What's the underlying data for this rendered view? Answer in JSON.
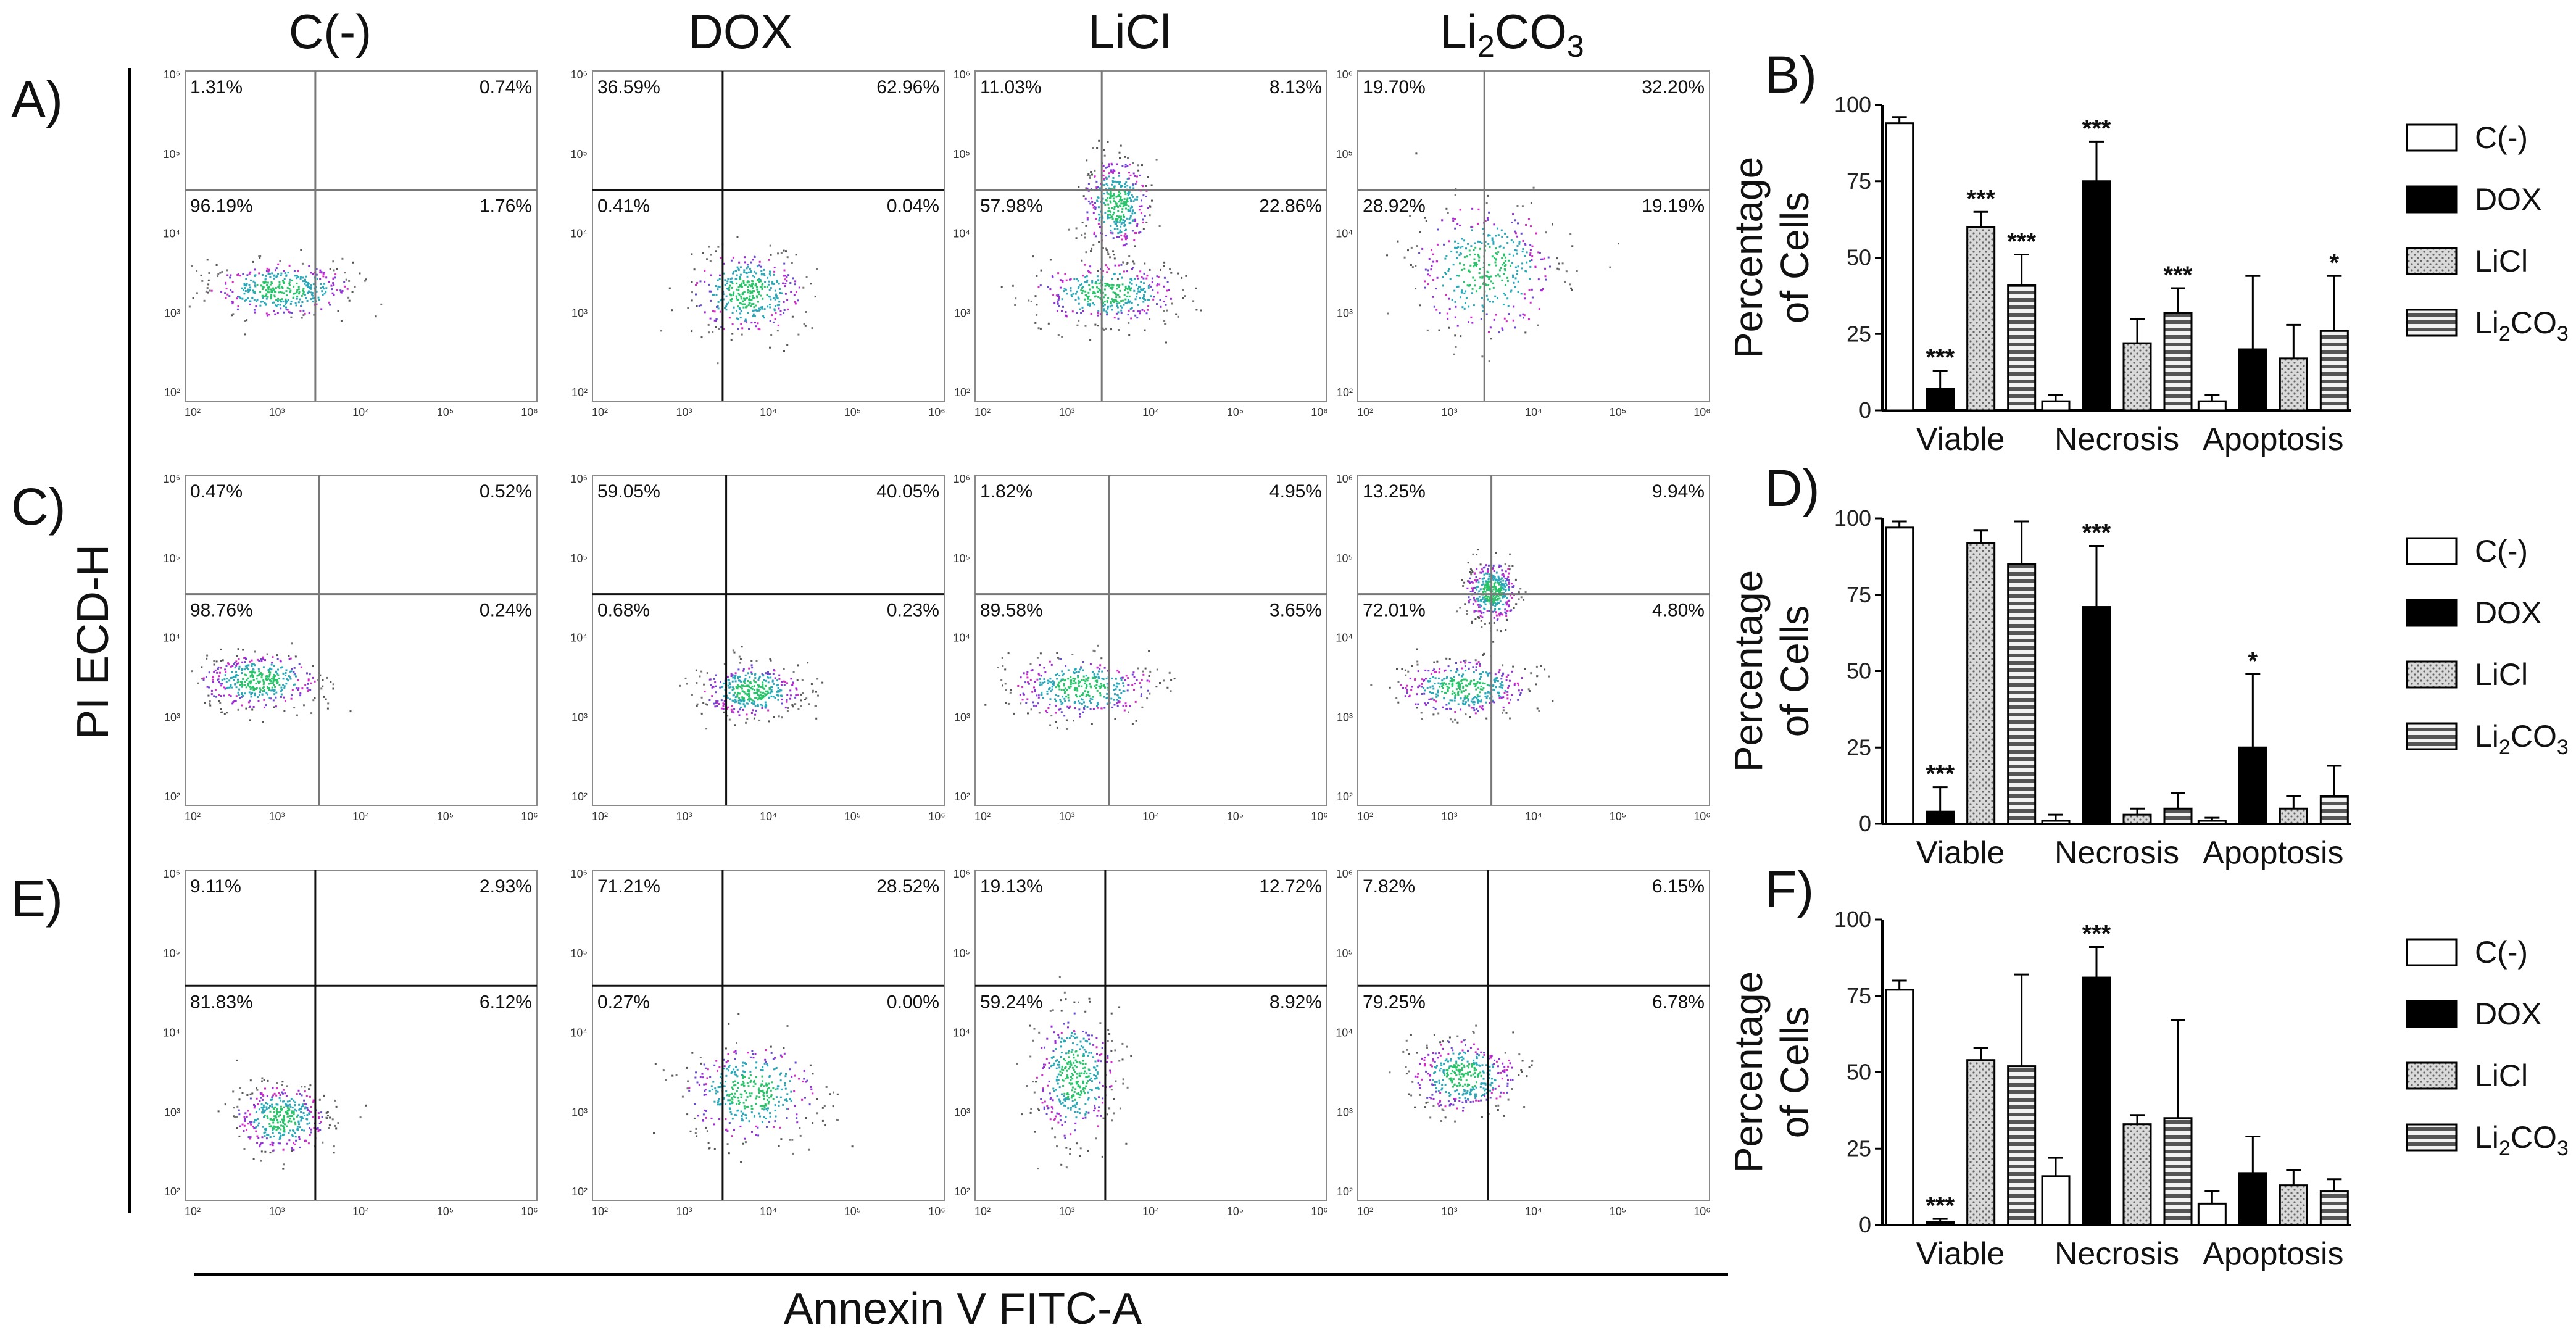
{
  "headers": [
    "C(-)",
    "DOX",
    "LiCl",
    "Li2CO3"
  ],
  "header_sub": {
    "prefix": "Li",
    "sub1": "2",
    "mid": "CO",
    "sub2": "3"
  },
  "y_axis_title": "PI ECD-H",
  "x_axis_title": "Annexin V FITC-A",
  "flow_rows": [
    {
      "label": "A)",
      "quadrants": [
        [
          "1.31%",
          "0.74%",
          "96.19%",
          "1.76%"
        ],
        [
          "36.59%",
          "62.96%",
          "0.41%",
          "0.04%"
        ],
        [
          "11.03%",
          "8.13%",
          "57.98%",
          "22.86%"
        ],
        [
          "19.70%",
          "32.20%",
          "28.92%",
          "19.19%"
        ]
      ]
    },
    {
      "label": "C)",
      "quadrants": [
        [
          "0.47%",
          "0.52%",
          "98.76%",
          "0.24%"
        ],
        [
          "59.05%",
          "40.05%",
          "0.68%",
          "0.23%"
        ],
        [
          "1.82%",
          "4.95%",
          "89.58%",
          "3.65%"
        ],
        [
          "13.25%",
          "9.94%",
          "72.01%",
          "4.80%"
        ]
      ]
    },
    {
      "label": "E)",
      "quadrants": [
        [
          "9.11%",
          "2.93%",
          "81.83%",
          "6.12%"
        ],
        [
          "71.21%",
          "28.52%",
          "0.27%",
          "0.00%"
        ],
        [
          "19.13%",
          "12.72%",
          "59.24%",
          "8.92%"
        ],
        [
          "7.82%",
          "6.15%",
          "79.25%",
          "6.78%"
        ]
      ]
    }
  ],
  "flow_ticks_y": [
    "10⁶",
    "10⁵",
    "10⁴",
    "10³",
    "10²"
  ],
  "flow_ticks_x": [
    "10²",
    "10³",
    "10⁴",
    "10⁵",
    "10⁶"
  ],
  "chart_data": [
    {
      "type": "bar",
      "label": "B)",
      "categories": [
        "Viable",
        "Necrosis",
        "Apoptosis"
      ],
      "ylabel": [
        "Percentage",
        "of Cells"
      ],
      "ylim": [
        0,
        100
      ],
      "yticks": [
        0,
        25,
        50,
        75,
        100
      ],
      "series": [
        {
          "name": "C(-)",
          "values": [
            94,
            3,
            3
          ],
          "err": [
            2,
            2,
            2
          ],
          "sig": [
            "",
            "",
            ""
          ]
        },
        {
          "name": "DOX",
          "values": [
            7,
            75,
            20
          ],
          "err": [
            6,
            13,
            24
          ],
          "sig": [
            "***",
            "***",
            ""
          ]
        },
        {
          "name": "LiCl",
          "values": [
            60,
            22,
            17
          ],
          "err": [
            5,
            8,
            11
          ],
          "sig": [
            "***",
            "",
            ""
          ]
        },
        {
          "name": "Li2CO3",
          "values": [
            41,
            32,
            26
          ],
          "err": [
            10,
            8,
            18
          ],
          "sig": [
            "***",
            "***",
            "*"
          ]
        }
      ]
    },
    {
      "type": "bar",
      "label": "D)",
      "categories": [
        "Viable",
        "Necrosis",
        "Apoptosis"
      ],
      "ylabel": [
        "Percentage",
        "of Cells"
      ],
      "ylim": [
        0,
        100
      ],
      "yticks": [
        0,
        25,
        50,
        75,
        100
      ],
      "series": [
        {
          "name": "C(-)",
          "values": [
            97,
            1,
            1
          ],
          "err": [
            2,
            2,
            1
          ],
          "sig": [
            "",
            "",
            ""
          ]
        },
        {
          "name": "DOX",
          "values": [
            4,
            71,
            25
          ],
          "err": [
            8,
            20,
            24
          ],
          "sig": [
            "***",
            "***",
            "*"
          ]
        },
        {
          "name": "LiCl",
          "values": [
            92,
            3,
            5
          ],
          "err": [
            4,
            2,
            4
          ],
          "sig": [
            "",
            "",
            ""
          ]
        },
        {
          "name": "Li2CO3",
          "values": [
            85,
            5,
            9
          ],
          "err": [
            14,
            5,
            10
          ],
          "sig": [
            "",
            "",
            ""
          ]
        }
      ]
    },
    {
      "type": "bar",
      "label": "F)",
      "categories": [
        "Viable",
        "Necrosis",
        "Apoptosis"
      ],
      "ylabel": [
        "Percentage",
        "of Cells"
      ],
      "ylim": [
        0,
        100
      ],
      "yticks": [
        0,
        25,
        50,
        75,
        100
      ],
      "series": [
        {
          "name": "C(-)",
          "values": [
            77,
            16,
            7
          ],
          "err": [
            3,
            6,
            4
          ],
          "sig": [
            "",
            "",
            ""
          ]
        },
        {
          "name": "DOX",
          "values": [
            1,
            81,
            17
          ],
          "err": [
            1,
            10,
            12
          ],
          "sig": [
            "***",
            "***",
            ""
          ]
        },
        {
          "name": "LiCl",
          "values": [
            54,
            33,
            13
          ],
          "err": [
            4,
            3,
            5
          ],
          "sig": [
            "",
            "",
            ""
          ]
        },
        {
          "name": "Li2CO3",
          "values": [
            52,
            35,
            11
          ],
          "err": [
            30,
            32,
            4
          ],
          "sig": [
            "",
            "",
            ""
          ]
        }
      ]
    }
  ]
}
